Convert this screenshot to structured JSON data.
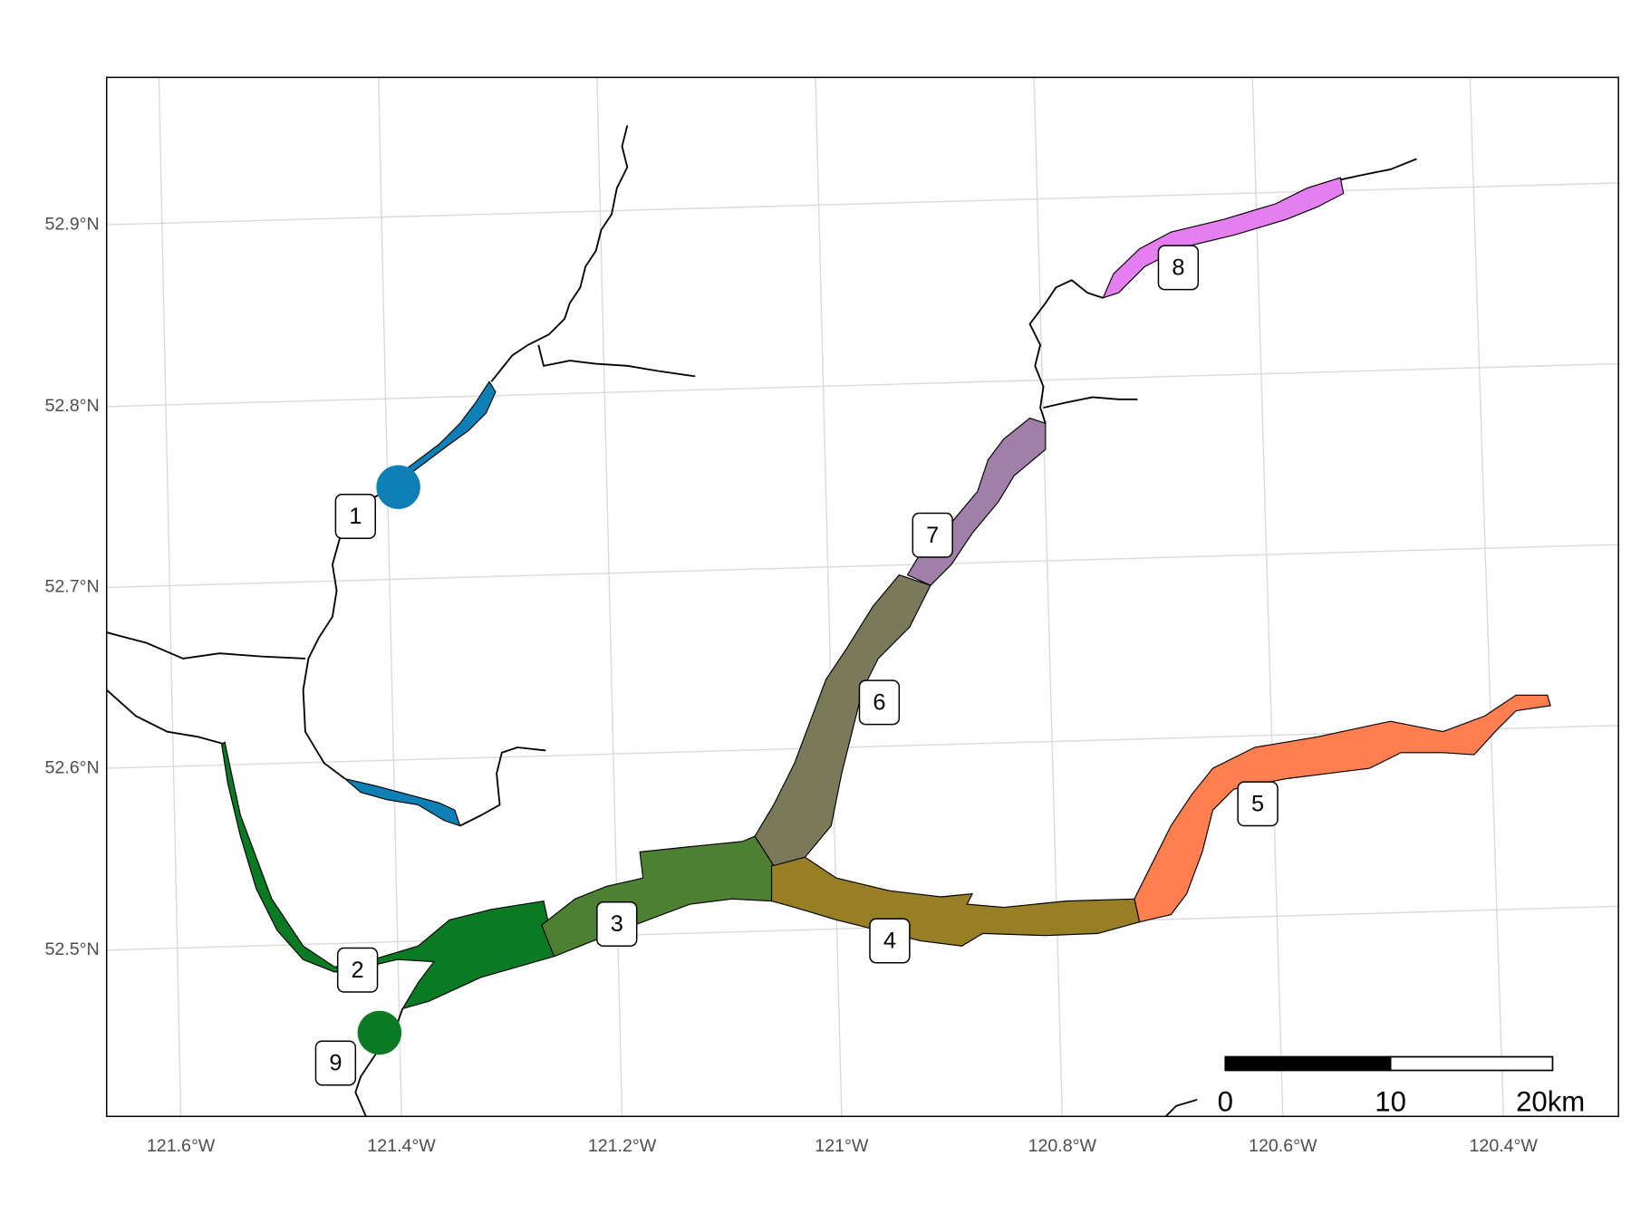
{
  "map": {
    "lat_labels": [
      "52.9°N",
      "52.8°N",
      "52.7°N",
      "52.6°N",
      "52.5°N"
    ],
    "lon_labels": [
      "121.6°W",
      "121.4°W",
      "121.2°W",
      "121°W",
      "120.8°W",
      "120.6°W",
      "120.4°W"
    ],
    "region_labels": [
      "1",
      "2",
      "3",
      "4",
      "5",
      "6",
      "7",
      "8",
      "9"
    ],
    "scale_bar": {
      "labels": [
        "0",
        "10",
        "20km"
      ]
    }
  }
}
